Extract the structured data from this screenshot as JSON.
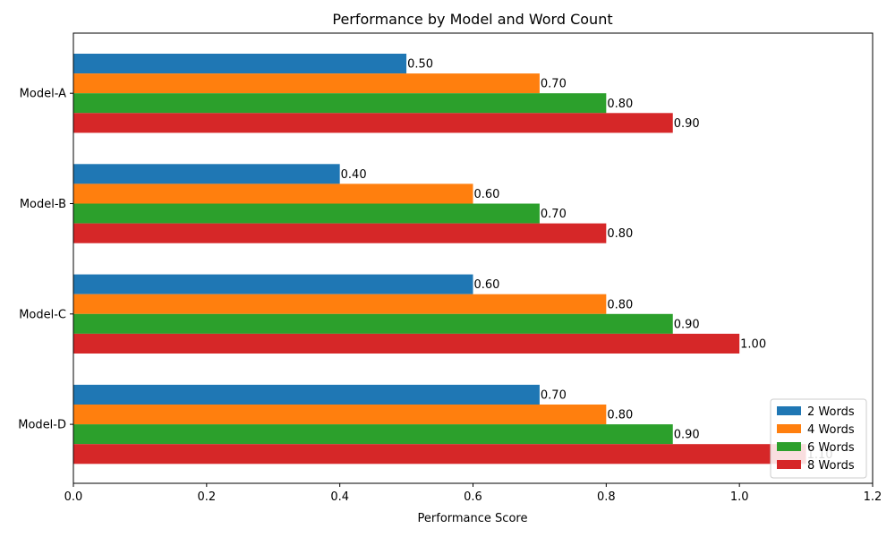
{
  "chart_data": {
    "type": "bar",
    "orientation": "horizontal",
    "title": "Performance by Model and Word Count",
    "xlabel": "Performance Score",
    "ylabel": "",
    "xlim": [
      0,
      1.2
    ],
    "x_ticks": [
      "0.0",
      "0.2",
      "0.4",
      "0.6",
      "0.8",
      "1.0",
      "1.2"
    ],
    "x_tick_values": [
      0,
      0.2,
      0.4,
      0.6,
      0.8,
      1.0,
      1.2
    ],
    "categories": [
      "Model-A",
      "Model-B",
      "Model-C",
      "Model-D"
    ],
    "series": [
      {
        "name": "2 Words",
        "color": "#1f77b4",
        "values": [
          0.5,
          0.4,
          0.6,
          0.7
        ],
        "labels": [
          "0.50",
          "0.40",
          "0.60",
          "0.70"
        ]
      },
      {
        "name": "4 Words",
        "color": "#ff7f0e",
        "values": [
          0.7,
          0.6,
          0.8,
          0.8
        ],
        "labels": [
          "0.70",
          "0.60",
          "0.80",
          "0.80"
        ]
      },
      {
        "name": "6 Words",
        "color": "#2ca02c",
        "values": [
          0.8,
          0.7,
          0.9,
          0.9
        ],
        "labels": [
          "0.80",
          "0.70",
          "0.90",
          "0.90"
        ]
      },
      {
        "name": "8 Words",
        "color": "#d62728",
        "values": [
          0.9,
          0.8,
          1.0,
          1.1
        ],
        "labels": [
          "0.90",
          "0.80",
          "1.00",
          "1.10"
        ]
      }
    ],
    "grid": false,
    "legend_position": "bottom-right"
  }
}
